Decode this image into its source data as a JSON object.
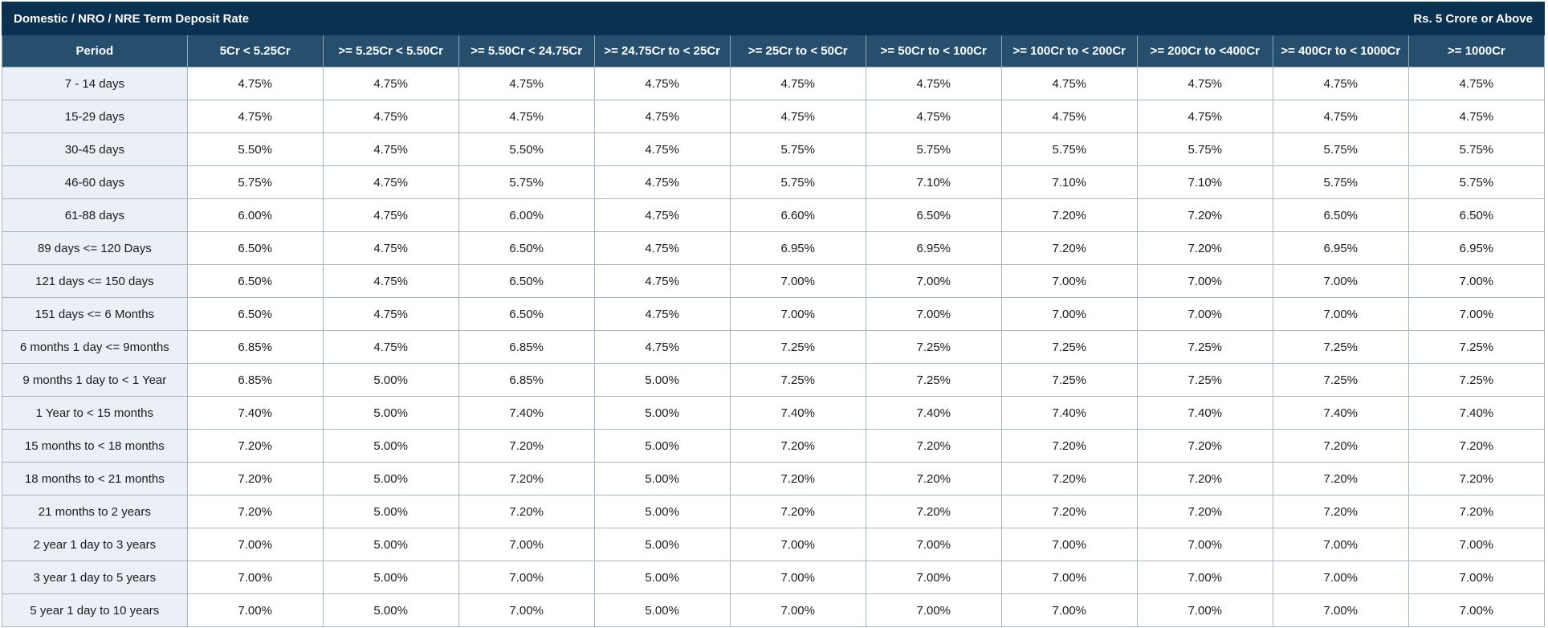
{
  "title": "Domestic / NRO / NRE Term Deposit Rate",
  "subtitle": "Rs. 5 Crore or Above",
  "columns": [
    "Period",
    "5Cr < 5.25Cr",
    ">= 5.25Cr < 5.50Cr",
    ">= 5.50Cr < 24.75Cr",
    ">= 24.75Cr to < 25Cr",
    ">= 25Cr to < 50Cr",
    ">= 50Cr to < 100Cr",
    ">= 100Cr to < 200Cr",
    ">= 200Cr to <400Cr",
    ">= 400Cr to < 1000Cr",
    ">= 1000Cr"
  ],
  "rows": [
    [
      "7 - 14 days",
      "4.75%",
      "4.75%",
      "4.75%",
      "4.75%",
      "4.75%",
      "4.75%",
      "4.75%",
      "4.75%",
      "4.75%",
      "4.75%"
    ],
    [
      "15-29 days",
      "4.75%",
      "4.75%",
      "4.75%",
      "4.75%",
      "4.75%",
      "4.75%",
      "4.75%",
      "4.75%",
      "4.75%",
      "4.75%"
    ],
    [
      "30-45 days",
      "5.50%",
      "4.75%",
      "5.50%",
      "4.75%",
      "5.75%",
      "5.75%",
      "5.75%",
      "5.75%",
      "5.75%",
      "5.75%"
    ],
    [
      "46-60 days",
      "5.75%",
      "4.75%",
      "5.75%",
      "4.75%",
      "5.75%",
      "7.10%",
      "7.10%",
      "7.10%",
      "5.75%",
      "5.75%"
    ],
    [
      "61-88 days",
      "6.00%",
      "4.75%",
      "6.00%",
      "4.75%",
      "6.60%",
      "6.50%",
      "7.20%",
      "7.20%",
      "6.50%",
      "6.50%"
    ],
    [
      "89 days <= 120 Days",
      "6.50%",
      "4.75%",
      "6.50%",
      "4.75%",
      "6.95%",
      "6.95%",
      "7.20%",
      "7.20%",
      "6.95%",
      "6.95%"
    ],
    [
      "121 days <= 150 days",
      "6.50%",
      "4.75%",
      "6.50%",
      "4.75%",
      "7.00%",
      "7.00%",
      "7.00%",
      "7.00%",
      "7.00%",
      "7.00%"
    ],
    [
      "151 days <= 6 Months",
      "6.50%",
      "4.75%",
      "6.50%",
      "4.75%",
      "7.00%",
      "7.00%",
      "7.00%",
      "7.00%",
      "7.00%",
      "7.00%"
    ],
    [
      "6 months 1 day <= 9months",
      "6.85%",
      "4.75%",
      "6.85%",
      "4.75%",
      "7.25%",
      "7.25%",
      "7.25%",
      "7.25%",
      "7.25%",
      "7.25%"
    ],
    [
      "9 months 1 day to < 1 Year",
      "6.85%",
      "5.00%",
      "6.85%",
      "5.00%",
      "7.25%",
      "7.25%",
      "7.25%",
      "7.25%",
      "7.25%",
      "7.25%"
    ],
    [
      "1 Year to < 15 months",
      "7.40%",
      "5.00%",
      "7.40%",
      "5.00%",
      "7.40%",
      "7.40%",
      "7.40%",
      "7.40%",
      "7.40%",
      "7.40%"
    ],
    [
      "15 months to < 18 months",
      "7.20%",
      "5.00%",
      "7.20%",
      "5.00%",
      "7.20%",
      "7.20%",
      "7.20%",
      "7.20%",
      "7.20%",
      "7.20%"
    ],
    [
      "18 months to < 21 months",
      "7.20%",
      "5.00%",
      "7.20%",
      "5.00%",
      "7.20%",
      "7.20%",
      "7.20%",
      "7.20%",
      "7.20%",
      "7.20%"
    ],
    [
      "21 months to 2 years",
      "7.20%",
      "5.00%",
      "7.20%",
      "5.00%",
      "7.20%",
      "7.20%",
      "7.20%",
      "7.20%",
      "7.20%",
      "7.20%"
    ],
    [
      "2 year 1 day to 3 years",
      "7.00%",
      "5.00%",
      "7.00%",
      "5.00%",
      "7.00%",
      "7.00%",
      "7.00%",
      "7.00%",
      "7.00%",
      "7.00%"
    ],
    [
      "3 year 1 day to 5 years",
      "7.00%",
      "5.00%",
      "7.00%",
      "5.00%",
      "7.00%",
      "7.00%",
      "7.00%",
      "7.00%",
      "7.00%",
      "7.00%"
    ],
    [
      "5 year 1 day to 10 years",
      "7.00%",
      "5.00%",
      "7.00%",
      "5.00%",
      "7.00%",
      "7.00%",
      "7.00%",
      "7.00%",
      "7.00%",
      "7.00%"
    ]
  ],
  "colors": {
    "title_bg": "#0b3150",
    "header_bg": "#264f6e",
    "period_bg": "#eaf0f5",
    "border": "#a9b4c0"
  }
}
